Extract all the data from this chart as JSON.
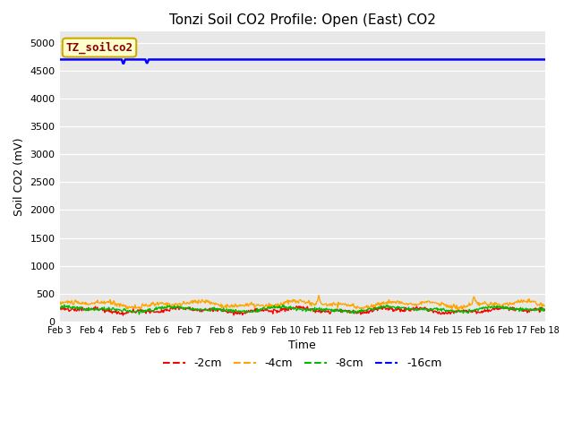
{
  "title": "Tonzi Soil CO2 Profile: Open (East) CO2",
  "ylabel": "Soil CO2 (mV)",
  "xlabel": "Time",
  "ylim": [
    0,
    5200
  ],
  "yticks": [
    0,
    500,
    1000,
    1500,
    2000,
    2500,
    3000,
    3500,
    4000,
    4500,
    5000
  ],
  "bg_color": "#e8e8e8",
  "fig_color": "#ffffff",
  "colors": {
    "-2cm": "#ff0000",
    "-4cm": "#ffa500",
    "-8cm": "#00bb00",
    "-16cm": "#0000ff"
  },
  "legend_label": "TZ_soilco2",
  "legend_bg": "#ffffcc",
  "legend_border": "#ccaa00",
  "n_points": 720,
  "date_start": 3,
  "date_end": 18,
  "blue_value": 4700,
  "blue_dip_val": 4620
}
